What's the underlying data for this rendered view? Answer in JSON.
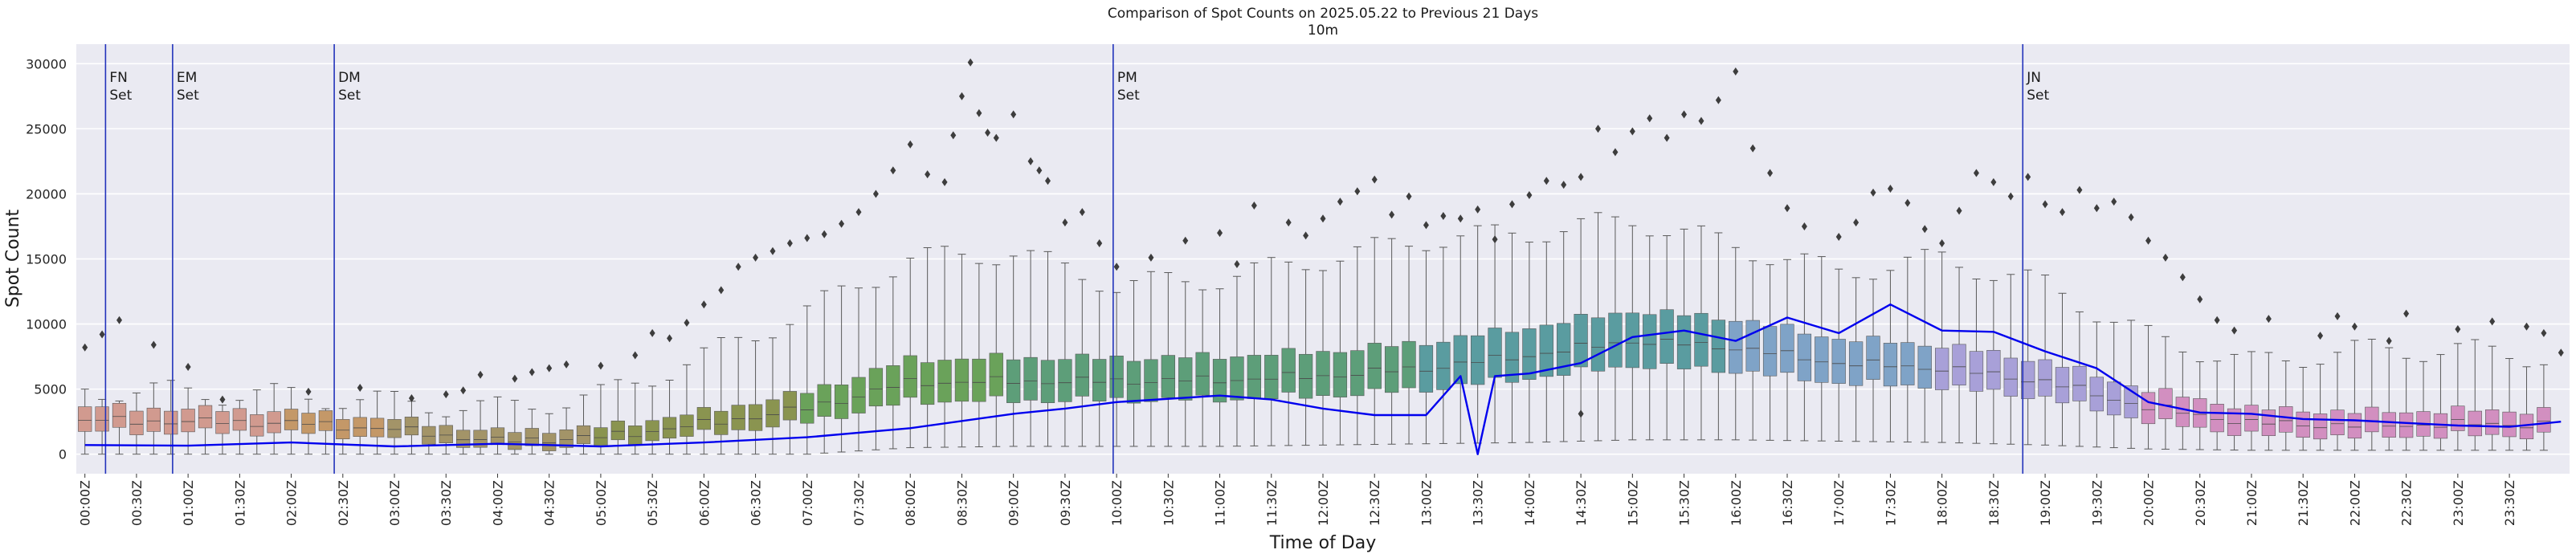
{
  "chart_data": {
    "type": "box",
    "title": "Comparison of Spot Counts on 2025.05.22 to Previous 21 Days",
    "subtitle": "10m",
    "xlabel": "Time of Day",
    "ylabel": "Spot Count",
    "ylim": [
      -1500,
      31500
    ],
    "yticks": [
      0,
      5000,
      10000,
      15000,
      20000,
      25000,
      30000
    ],
    "grid": true,
    "bin_minutes": 10,
    "x_tick_labels": [
      "00:00Z",
      "00:30Z",
      "01:00Z",
      "01:30Z",
      "02:00Z",
      "02:30Z",
      "03:00Z",
      "03:30Z",
      "04:00Z",
      "04:30Z",
      "05:00Z",
      "05:30Z",
      "06:00Z",
      "06:30Z",
      "07:00Z",
      "07:30Z",
      "08:00Z",
      "08:30Z",
      "09:00Z",
      "09:30Z",
      "10:00Z",
      "10:30Z",
      "11:00Z",
      "11:30Z",
      "12:00Z",
      "12:30Z",
      "13:00Z",
      "13:30Z",
      "14:00Z",
      "14:30Z",
      "15:00Z",
      "15:30Z",
      "16:00Z",
      "16:30Z",
      "17:00Z",
      "17:30Z",
      "18:00Z",
      "18:30Z",
      "19:00Z",
      "19:30Z",
      "20:00Z",
      "20:30Z",
      "21:00Z",
      "21:30Z",
      "22:00Z",
      "22:30Z",
      "23:00Z",
      "23:30Z"
    ],
    "box_profile_minutes": [
      0,
      120,
      180,
      240,
      300,
      360,
      420,
      480,
      540,
      600,
      660,
      720,
      780,
      840,
      900,
      960,
      1020,
      1080,
      1140,
      1200,
      1260,
      1320,
      1380,
      1430
    ],
    "box_profile_median": [
      2600,
      2400,
      1900,
      1000,
      1300,
      2300,
      3500,
      5500,
      5600,
      5600,
      5700,
      6000,
      6600,
      7600,
      8700,
      8200,
      7000,
      6600,
      5600,
      3600,
      2400,
      2200,
      2300,
      2300
    ],
    "box_profile_spread": [
      1900,
      1600,
      1400,
      1300,
      1400,
      1700,
      2300,
      3200,
      3300,
      3200,
      3300,
      3400,
      3600,
      3900,
      4200,
      4000,
      3400,
      3200,
      2800,
      2400,
      2000,
      1900,
      1900,
      1900
    ],
    "box_profile_whisker_high": [
      5000,
      4500,
      4000,
      3500,
      4500,
      7500,
      11000,
      15000,
      15500,
      13000,
      13500,
      15000,
      16500,
      17000,
      18000,
      16000,
      14000,
      15000,
      13000,
      9000,
      7000,
      8000,
      8000,
      7500
    ],
    "box_profile_whisker_low": [
      0,
      0,
      0,
      0,
      0,
      0,
      0,
      500,
      600,
      600,
      600,
      700,
      800,
      900,
      1100,
      1100,
      1000,
      900,
      700,
      400,
      300,
      300,
      300,
      300
    ],
    "box_colors": [
      {
        "until_minute": 120,
        "color": "#d19a8f"
      },
      {
        "until_minute": 180,
        "color": "#c49868"
      },
      {
        "until_minute": 300,
        "color": "#a39468"
      },
      {
        "until_minute": 420,
        "color": "#8a9450"
      },
      {
        "until_minute": 540,
        "color": "#6aa25a"
      },
      {
        "until_minute": 780,
        "color": "#5d9e79"
      },
      {
        "until_minute": 960,
        "color": "#5a9ca0"
      },
      {
        "until_minute": 1080,
        "color": "#7fa3c7"
      },
      {
        "until_minute": 1200,
        "color": "#a8a0d8"
      },
      {
        "until_minute": 1440,
        "color": "#d28fc0"
      }
    ],
    "series": [
      {
        "name": "2025.05.22",
        "color": "#0000ee",
        "x_minutes": [
          0,
          60,
          120,
          180,
          240,
          300,
          360,
          420,
          480,
          540,
          570,
          600,
          660,
          690,
          720,
          750,
          780,
          800,
          810,
          820,
          840,
          870,
          900,
          930,
          960,
          990,
          1020,
          1050,
          1080,
          1110,
          1140,
          1170,
          1200,
          1230,
          1260,
          1290,
          1320,
          1350,
          1380,
          1410,
          1440
        ],
        "values": [
          700,
          650,
          900,
          600,
          800,
          600,
          900,
          1300,
          2000,
          3100,
          3500,
          4000,
          4500,
          4200,
          3500,
          3000,
          3000,
          6000,
          0,
          6000,
          6200,
          7000,
          9000,
          9500,
          8700,
          10500,
          9300,
          11500,
          9500,
          9400,
          7900,
          6600,
          4000,
          3200,
          3100,
          2700,
          2600,
          2400,
          2200,
          2100,
          2500
        ]
      }
    ],
    "outliers": [
      [
        0,
        8200
      ],
      [
        10,
        9200
      ],
      [
        20,
        10300
      ],
      [
        40,
        8400
      ],
      [
        60,
        6700
      ],
      [
        80,
        4200
      ],
      [
        130,
        4800
      ],
      [
        160,
        5100
      ],
      [
        190,
        4300
      ],
      [
        210,
        4600
      ],
      [
        220,
        4900
      ],
      [
        230,
        6100
      ],
      [
        250,
        5800
      ],
      [
        260,
        6300
      ],
      [
        270,
        6600
      ],
      [
        280,
        6900
      ],
      [
        300,
        6800
      ],
      [
        320,
        7600
      ],
      [
        330,
        9300
      ],
      [
        340,
        8900
      ],
      [
        350,
        10100
      ],
      [
        360,
        11500
      ],
      [
        370,
        12600
      ],
      [
        380,
        14400
      ],
      [
        390,
        15100
      ],
      [
        400,
        15600
      ],
      [
        410,
        16200
      ],
      [
        420,
        16600
      ],
      [
        430,
        16900
      ],
      [
        440,
        17700
      ],
      [
        450,
        18600
      ],
      [
        460,
        20000
      ],
      [
        470,
        21800
      ],
      [
        480,
        23800
      ],
      [
        490,
        21500
      ],
      [
        500,
        20900
      ],
      [
        505,
        24500
      ],
      [
        510,
        27500
      ],
      [
        515,
        30100
      ],
      [
        520,
        26200
      ],
      [
        525,
        24700
      ],
      [
        530,
        24300
      ],
      [
        540,
        26100
      ],
      [
        550,
        22500
      ],
      [
        555,
        21800
      ],
      [
        560,
        21000
      ],
      [
        570,
        17800
      ],
      [
        580,
        18600
      ],
      [
        590,
        16200
      ],
      [
        600,
        14400
      ],
      [
        620,
        15100
      ],
      [
        640,
        16400
      ],
      [
        660,
        17000
      ],
      [
        670,
        14600
      ],
      [
        680,
        19100
      ],
      [
        700,
        17800
      ],
      [
        710,
        16800
      ],
      [
        720,
        18100
      ],
      [
        730,
        19400
      ],
      [
        740,
        20200
      ],
      [
        750,
        21100
      ],
      [
        760,
        18400
      ],
      [
        770,
        19800
      ],
      [
        780,
        17600
      ],
      [
        790,
        18300
      ],
      [
        800,
        18100
      ],
      [
        810,
        18800
      ],
      [
        820,
        16500
      ],
      [
        830,
        19200
      ],
      [
        840,
        19900
      ],
      [
        850,
        21000
      ],
      [
        860,
        20700
      ],
      [
        870,
        21300
      ],
      [
        880,
        25000
      ],
      [
        890,
        23200
      ],
      [
        900,
        24800
      ],
      [
        910,
        25800
      ],
      [
        920,
        24300
      ],
      [
        930,
        26100
      ],
      [
        940,
        25600
      ],
      [
        950,
        27200
      ],
      [
        960,
        29400
      ],
      [
        970,
        23500
      ],
      [
        980,
        21600
      ],
      [
        990,
        18900
      ],
      [
        1000,
        17500
      ],
      [
        1020,
        16700
      ],
      [
        1030,
        17800
      ],
      [
        1040,
        20100
      ],
      [
        1050,
        20400
      ],
      [
        1060,
        19300
      ],
      [
        1070,
        17300
      ],
      [
        1080,
        16200
      ],
      [
        1090,
        18700
      ],
      [
        1100,
        21600
      ],
      [
        1110,
        20900
      ],
      [
        1120,
        19800
      ],
      [
        1130,
        21300
      ],
      [
        1140,
        19200
      ],
      [
        1150,
        18600
      ],
      [
        1160,
        20300
      ],
      [
        1170,
        18900
      ],
      [
        1180,
        19400
      ],
      [
        1190,
        18200
      ],
      [
        1200,
        16400
      ],
      [
        1210,
        15100
      ],
      [
        1220,
        13600
      ],
      [
        1230,
        11900
      ],
      [
        1240,
        10300
      ],
      [
        1250,
        9500
      ],
      [
        1270,
        10400
      ],
      [
        1300,
        9100
      ],
      [
        1310,
        10600
      ],
      [
        1320,
        9800
      ],
      [
        1340,
        8700
      ],
      [
        1350,
        10800
      ],
      [
        1380,
        9600
      ],
      [
        1400,
        10200
      ],
      [
        1420,
        9800
      ],
      [
        1430,
        9300
      ],
      [
        870,
        3100
      ],
      [
        1440,
        7800
      ]
    ],
    "annotations": [
      {
        "line1": "FN",
        "line2": "Set",
        "x_minute": 12
      },
      {
        "line1": "EM",
        "line2": "Set",
        "x_minute": 51
      },
      {
        "line1": "DM",
        "line2": "Set",
        "x_minute": 145
      },
      {
        "line1": "PM",
        "line2": "Set",
        "x_minute": 598
      },
      {
        "line1": "JN",
        "line2": "Set",
        "x_minute": 1127
      }
    ]
  }
}
